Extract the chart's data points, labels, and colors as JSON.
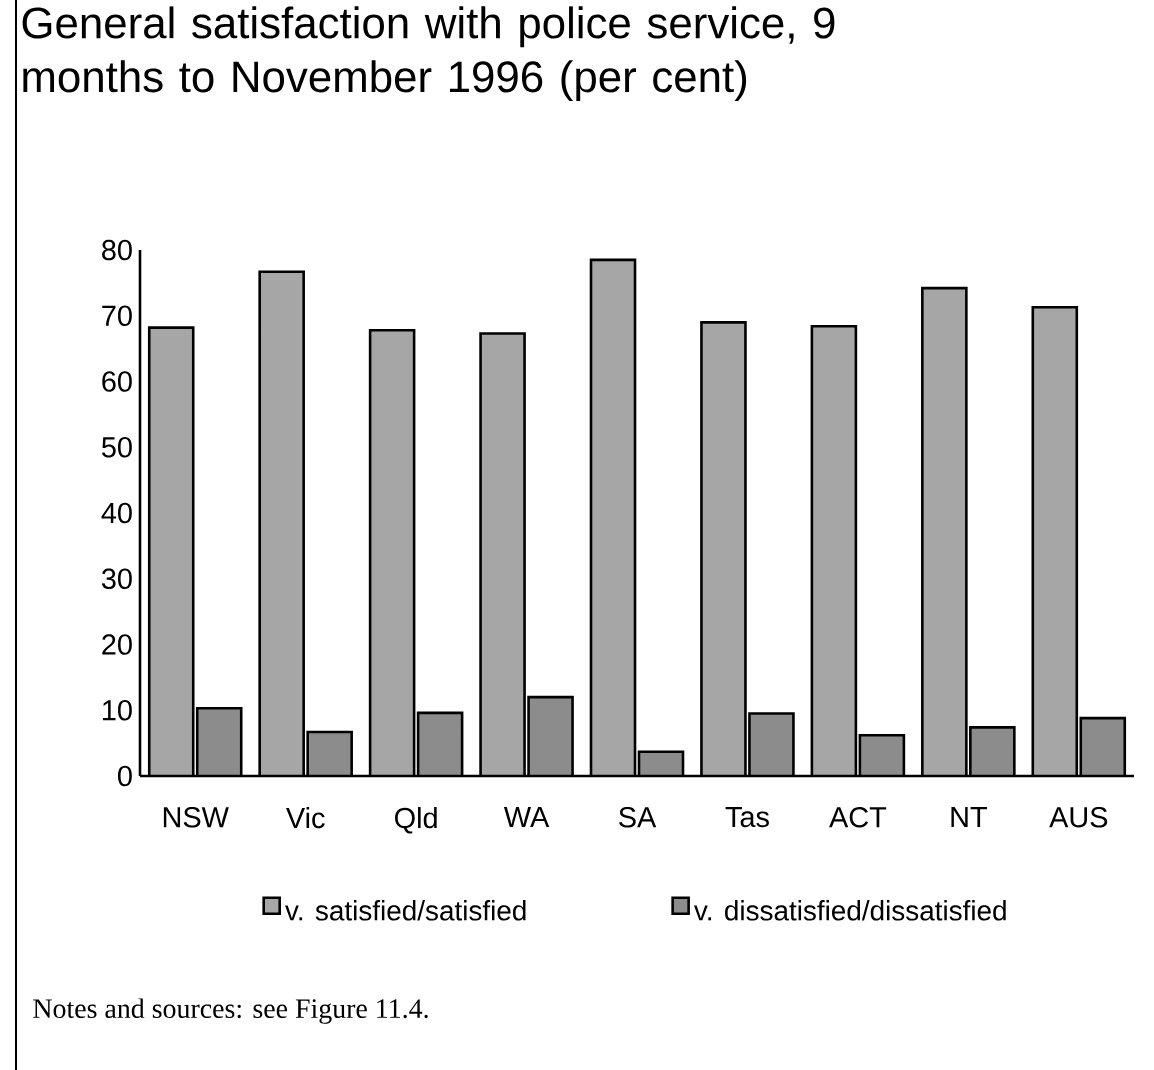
{
  "chart_data": {
    "type": "bar",
    "title": "General satisfaction with police service, 9 months to November 1996 (per cent)",
    "categories": [
      "NSW",
      "Vic",
      "Qld",
      "WA",
      "SA",
      "Tas",
      "ACT",
      "NT",
      "AUS"
    ],
    "series": [
      {
        "name": "v. satisfied/satisfied",
        "color": "#a6a6a6",
        "values": [
          68.2,
          76.7,
          67.8,
          67.3,
          78.5,
          69.0,
          68.4,
          74.2,
          71.3
        ]
      },
      {
        "name": "v. dissatisfied/dissatisfied",
        "color": "#8c8c8c",
        "values": [
          10.3,
          6.7,
          9.6,
          12.0,
          3.7,
          9.5,
          6.2,
          7.4,
          8.8
        ]
      }
    ],
    "ylim": [
      0,
      80
    ],
    "yticks": [
      0,
      10,
      20,
      30,
      40,
      50,
      60,
      70,
      80
    ],
    "grid": false,
    "legend": "bottom",
    "annotations": [
      "Notes and sources: see Figure 11.4."
    ]
  }
}
